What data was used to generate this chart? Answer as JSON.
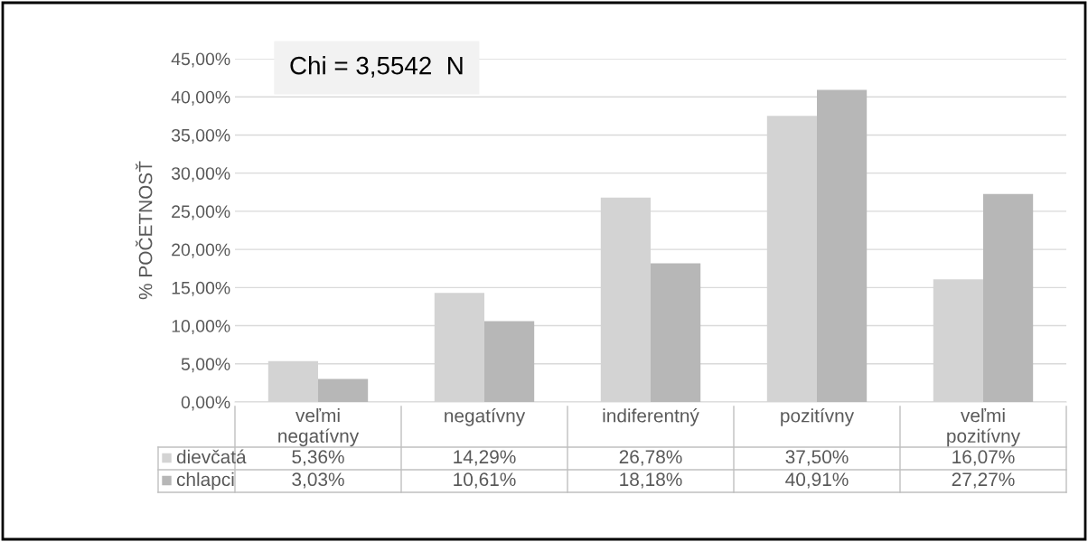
{
  "chart_data": {
    "type": "bar",
    "ylabel": "% POČETNOSŤ",
    "categories": [
      "veľmi\nnegatívny",
      "negatívny",
      "indiferentný",
      "pozitívny",
      "veľmi\npozitívny"
    ],
    "series": [
      {
        "name": "dievčatá",
        "color": "#d3d3d3",
        "values": [
          5.36,
          14.29,
          26.78,
          37.5,
          16.07
        ],
        "value_labels": [
          "5,36%",
          "14,29%",
          "26,78%",
          "37,50%",
          "16,07%"
        ]
      },
      {
        "name": "chlapci",
        "color": "#b7b7b7",
        "values": [
          3.03,
          10.61,
          18.18,
          40.91,
          27.27
        ],
        "value_labels": [
          "3,03%",
          "10,61%",
          "18,18%",
          "40,91%",
          "27,27%"
        ]
      }
    ],
    "ylim": [
      0,
      45
    ],
    "yticks": [
      {
        "value": 0,
        "label": "0,00%"
      },
      {
        "value": 5,
        "label": "5,00%"
      },
      {
        "value": 10,
        "label": "10,00%"
      },
      {
        "value": 15,
        "label": "15,00%"
      },
      {
        "value": 20,
        "label": "20,00%"
      },
      {
        "value": 25,
        "label": "25,00%"
      },
      {
        "value": 30,
        "label": "30,00%"
      },
      {
        "value": 35,
        "label": "35,00%"
      },
      {
        "value": 40,
        "label": "40,00%"
      },
      {
        "value": 45,
        "label": "45,00%"
      }
    ],
    "annotations": [
      "Chi = 3,5542  N"
    ],
    "grid": "y",
    "legend": "bottom"
  }
}
